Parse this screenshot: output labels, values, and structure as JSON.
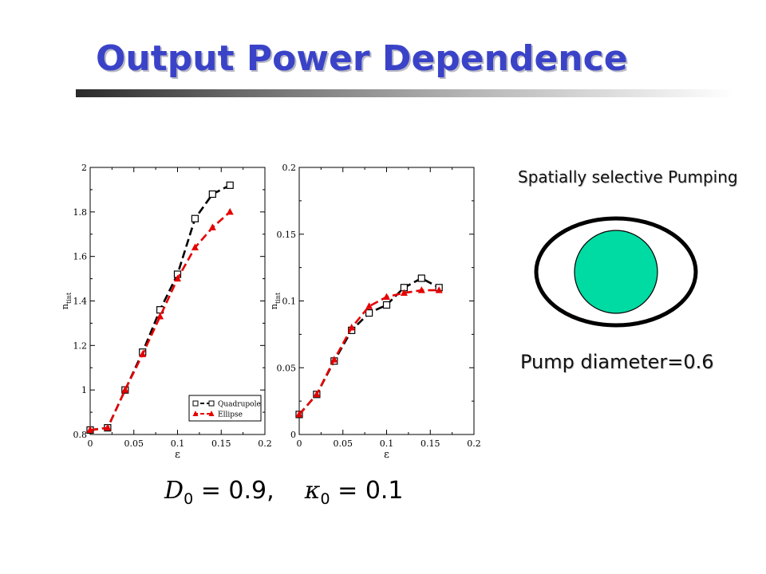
{
  "slide": {
    "title": "Output Power Dependence",
    "caption_pumping": "Spatially selective Pumping",
    "caption_diameter": "Pump diameter=0.6",
    "formula": {
      "d_symbol": "D",
      "d_sub": "0",
      "d_equals": "=",
      "d_value": "0.9,",
      "k_symbol": "κ",
      "k_sub": "0",
      "k_equals": "=",
      "k_value": "0.1"
    },
    "colors": {
      "title": "#3a43c8",
      "pump_fill": "#00dba3",
      "quadrupole": "#000000",
      "ellipse": "#e60000"
    }
  },
  "chart_data": [
    {
      "type": "line",
      "xlabel": "ε",
      "ylabel": "n_tint",
      "xlim": [
        0,
        0.2
      ],
      "ylim": [
        0.8,
        2.0
      ],
      "xticks": [
        "0",
        "0.05",
        "0.1",
        "0.15",
        "0.2"
      ],
      "yticks": [
        "0.8",
        "1",
        "1.2",
        "1.4",
        "1.6",
        "1.8",
        "2"
      ],
      "legend_position": "bottom-right",
      "series": [
        {
          "name": "Quadrupole",
          "marker": "square",
          "x": [
            0,
            0.02,
            0.04,
            0.06,
            0.08,
            0.1,
            0.12,
            0.14,
            0.16
          ],
          "y": [
            0.82,
            0.83,
            1.0,
            1.17,
            1.36,
            1.52,
            1.77,
            1.88,
            1.92
          ]
        },
        {
          "name": "Ellipse",
          "marker": "triangle",
          "x": [
            0,
            0.02,
            0.04,
            0.06,
            0.08,
            0.1,
            0.12,
            0.14,
            0.16
          ],
          "y": [
            0.82,
            0.83,
            1.0,
            1.16,
            1.33,
            1.5,
            1.64,
            1.73,
            1.8
          ]
        }
      ]
    },
    {
      "type": "line",
      "xlabel": "ε",
      "ylabel": "n_tint",
      "xlim": [
        0,
        0.2
      ],
      "ylim": [
        0,
        0.2
      ],
      "xticks": [
        "0",
        "0.05",
        "0.1",
        "0.15",
        "0.2"
      ],
      "yticks": [
        "0",
        "0.05",
        "0.1",
        "0.15",
        "0.2"
      ],
      "series": [
        {
          "name": "Quadrupole",
          "marker": "square",
          "x": [
            0,
            0.02,
            0.04,
            0.06,
            0.08,
            0.1,
            0.12,
            0.14,
            0.16
          ],
          "y": [
            0.015,
            0.03,
            0.055,
            0.078,
            0.091,
            0.097,
            0.11,
            0.117,
            0.11
          ]
        },
        {
          "name": "Ellipse",
          "marker": "triangle",
          "x": [
            0,
            0.02,
            0.04,
            0.06,
            0.08,
            0.1,
            0.12,
            0.14,
            0.16
          ],
          "y": [
            0.015,
            0.03,
            0.056,
            0.08,
            0.096,
            0.103,
            0.106,
            0.108,
            0.108
          ]
        }
      ]
    }
  ]
}
